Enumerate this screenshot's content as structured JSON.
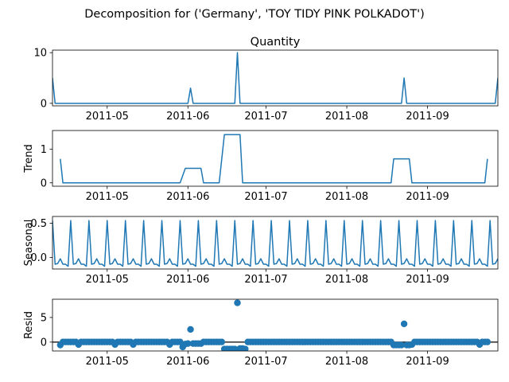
{
  "figure_title": "Decomposition for ('Germany', 'TOY TIDY PINK POLKADOT')",
  "accent_color": "#1f77b4",
  "chart_data": [
    {
      "type": "line",
      "title": "Quantity",
      "ylabel": "",
      "ylim": [
        -0.5,
        10.5
      ],
      "yticks": [
        "0",
        "10"
      ],
      "ytick_values": [
        0,
        10
      ],
      "xticks": [
        "2011-05",
        "2011-06",
        "2011-07",
        "2011-08",
        "2011-09"
      ],
      "xtick_dates": [
        "2011-05-01",
        "2011-06-01",
        "2011-07-01",
        "2011-08-01",
        "2011-09-01"
      ],
      "xlim": [
        "2011-04-10",
        "2011-09-28"
      ],
      "points": [
        [
          "2011-04-10",
          5
        ],
        [
          "2011-04-11",
          0
        ],
        [
          "2011-06-01",
          0
        ],
        [
          "2011-06-02",
          3
        ],
        [
          "2011-06-03",
          0
        ],
        [
          "2011-06-19",
          0
        ],
        [
          "2011-06-20",
          10
        ],
        [
          "2011-06-21",
          0
        ],
        [
          "2011-08-22",
          0
        ],
        [
          "2011-08-23",
          5
        ],
        [
          "2011-08-24",
          0
        ],
        [
          "2011-09-27",
          0
        ],
        [
          "2011-09-28",
          5
        ]
      ]
    },
    {
      "type": "line",
      "title": "",
      "ylabel": "Trend",
      "ylim": [
        -0.1,
        1.55
      ],
      "yticks": [
        "0",
        "1"
      ],
      "ytick_values": [
        0,
        1
      ],
      "xticks": [
        "2011-05",
        "2011-06",
        "2011-07",
        "2011-08",
        "2011-09"
      ],
      "xtick_dates": [
        "2011-05-01",
        "2011-06-01",
        "2011-07-01",
        "2011-08-01",
        "2011-09-01"
      ],
      "xlim": [
        "2011-04-10",
        "2011-09-28"
      ],
      "points": [
        [
          "2011-04-13",
          0.71
        ],
        [
          "2011-04-14",
          0
        ],
        [
          "2011-05-29",
          0
        ],
        [
          "2011-05-31",
          0.43
        ],
        [
          "2011-06-06",
          0.43
        ],
        [
          "2011-06-07",
          0
        ],
        [
          "2011-06-13",
          0
        ],
        [
          "2011-06-15",
          1.43
        ],
        [
          "2011-06-21",
          1.43
        ],
        [
          "2011-06-22",
          0
        ],
        [
          "2011-08-18",
          0
        ],
        [
          "2011-08-19",
          0.71
        ],
        [
          "2011-08-25",
          0.71
        ],
        [
          "2011-08-26",
          0
        ],
        [
          "2011-09-23",
          0
        ],
        [
          "2011-09-24",
          0.71
        ]
      ]
    },
    {
      "type": "line",
      "title": "",
      "ylabel": "Seasonal",
      "ylim": [
        -0.17,
        0.6
      ],
      "yticks": [
        "0.0",
        "0.5"
      ],
      "ytick_values": [
        0,
        0.5
      ],
      "xticks": [
        "2011-05",
        "2011-06",
        "2011-07",
        "2011-08",
        "2011-09"
      ],
      "xtick_dates": [
        "2011-05-01",
        "2011-06-01",
        "2011-07-01",
        "2011-08-01",
        "2011-09-01"
      ],
      "xlim": [
        "2011-04-10",
        "2011-09-28"
      ],
      "period": 7,
      "pattern": [
        0.54,
        -0.1,
        -0.09,
        -0.02,
        -0.1,
        -0.1,
        -0.13
      ]
    },
    {
      "type": "scatter",
      "title": "",
      "ylabel": "Resid",
      "ylim": [
        -1.8,
        8.7
      ],
      "yticks": [
        "0",
        "5"
      ],
      "ytick_values": [
        0,
        5
      ],
      "baseline": 0,
      "xticks": [
        "2011-05",
        "2011-06",
        "2011-07",
        "2011-08",
        "2011-09"
      ],
      "xtick_dates": [
        "2011-05-01",
        "2011-06-01",
        "2011-07-01",
        "2011-08-01",
        "2011-09-01"
      ],
      "xlim": [
        "2011-04-10",
        "2011-09-28"
      ],
      "default_value": 0.03,
      "outliers": [
        [
          "2011-04-13",
          -0.6
        ],
        [
          "2011-04-20",
          -0.5
        ],
        [
          "2011-05-04",
          -0.5
        ],
        [
          "2011-05-11",
          -0.5
        ],
        [
          "2011-05-25",
          -0.5
        ],
        [
          "2011-05-30",
          -1.0
        ],
        [
          "2011-05-31",
          -0.4
        ],
        [
          "2011-06-01",
          -0.3
        ],
        [
          "2011-06-02",
          2.57
        ],
        [
          "2011-06-03",
          -0.3
        ],
        [
          "2011-06-04",
          -0.3
        ],
        [
          "2011-06-05",
          -0.3
        ],
        [
          "2011-06-06",
          -0.3
        ],
        [
          "2011-06-15",
          -1.4
        ],
        [
          "2011-06-16",
          -1.4
        ],
        [
          "2011-06-17",
          -1.4
        ],
        [
          "2011-06-18",
          -1.4
        ],
        [
          "2011-06-19",
          -1.4
        ],
        [
          "2011-06-20",
          7.97
        ],
        [
          "2011-06-21",
          -1.3
        ],
        [
          "2011-06-22",
          -1.3
        ],
        [
          "2011-06-23",
          -1.4
        ],
        [
          "2011-08-19",
          -0.6
        ],
        [
          "2011-08-20",
          -0.6
        ],
        [
          "2011-08-21",
          -0.6
        ],
        [
          "2011-08-22",
          -0.6
        ],
        [
          "2011-08-23",
          3.7
        ],
        [
          "2011-08-24",
          -0.6
        ],
        [
          "2011-08-25",
          -0.6
        ],
        [
          "2011-08-26",
          -0.5
        ],
        [
          "2011-09-21",
          -0.5
        ]
      ],
      "range": [
        "2011-04-13",
        "2011-09-24"
      ]
    }
  ]
}
